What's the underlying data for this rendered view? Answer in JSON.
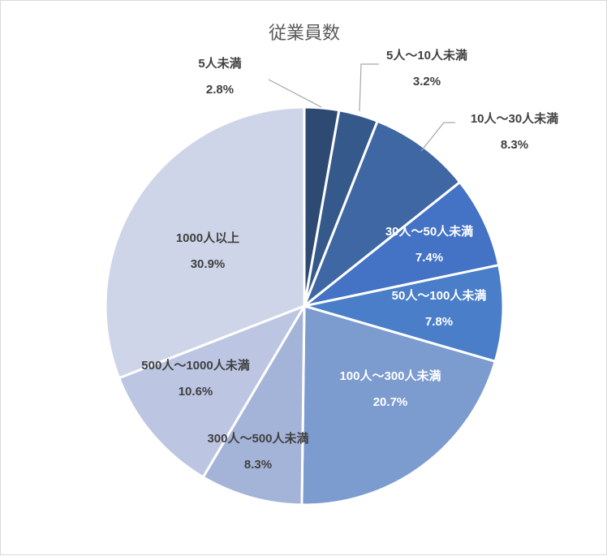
{
  "chart_data": {
    "type": "pie",
    "title": "従業員数",
    "categories": [
      "5人未満",
      "5人～10人未満",
      "10人～30人未満",
      "30人～50人未満",
      "50人～100人未満",
      "100人～300人未満",
      "300人～500人未満",
      "500人～1000人未満",
      "1000人以上"
    ],
    "values": [
      2.8,
      3.2,
      8.3,
      7.4,
      7.8,
      20.7,
      8.3,
      10.6,
      30.9
    ],
    "value_labels": [
      "2.8%",
      "3.2%",
      "8.3%",
      "7.4%",
      "7.8%",
      "20.7%",
      "8.3%",
      "10.6%",
      "30.9%"
    ],
    "colors": [
      "#2e4a73",
      "#35598b",
      "#3e67a3",
      "#4472c4",
      "#4a7ec8",
      "#7c9bcf",
      "#a4b4d9",
      "#bcc6e2",
      "#cfd5e8"
    ],
    "label_colors": [
      "#404040",
      "#404040",
      "#404040",
      "#ffffff",
      "#ffffff",
      "#ffffff",
      "#404040",
      "#404040",
      "#404040"
    ],
    "legend": "none",
    "start": "12 o'clock, clockwise"
  }
}
